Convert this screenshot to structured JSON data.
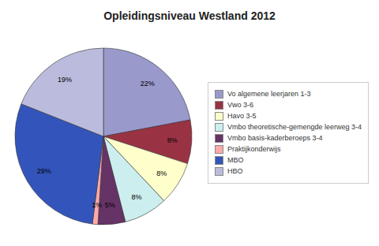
{
  "chart_data": {
    "type": "pie",
    "title": "Opleidingsniveau Westland 2012",
    "categories": [
      "Vo algemene leerjaren 1-3",
      "Vwo 3-6",
      "Havo 3-5",
      "Vmbo theoretische-gemengde leerweg 3-4",
      "Vmbo basis-kaderberoeps 3-4",
      "Praktijkonderwijs",
      "MBO",
      "HBO"
    ],
    "values": [
      22,
      8,
      8,
      8,
      5,
      1,
      29,
      19
    ],
    "value_labels": [
      "22%",
      "8%",
      "8%",
      "8%",
      "5%",
      "1%",
      "29%",
      "19%"
    ],
    "colors": [
      "#9999cc",
      "#993344",
      "#ffffcc",
      "#cceeee",
      "#663366",
      "#ffaaaa",
      "#3355bb",
      "#bbbbdd"
    ],
    "data_labels": true,
    "legend": "right"
  }
}
